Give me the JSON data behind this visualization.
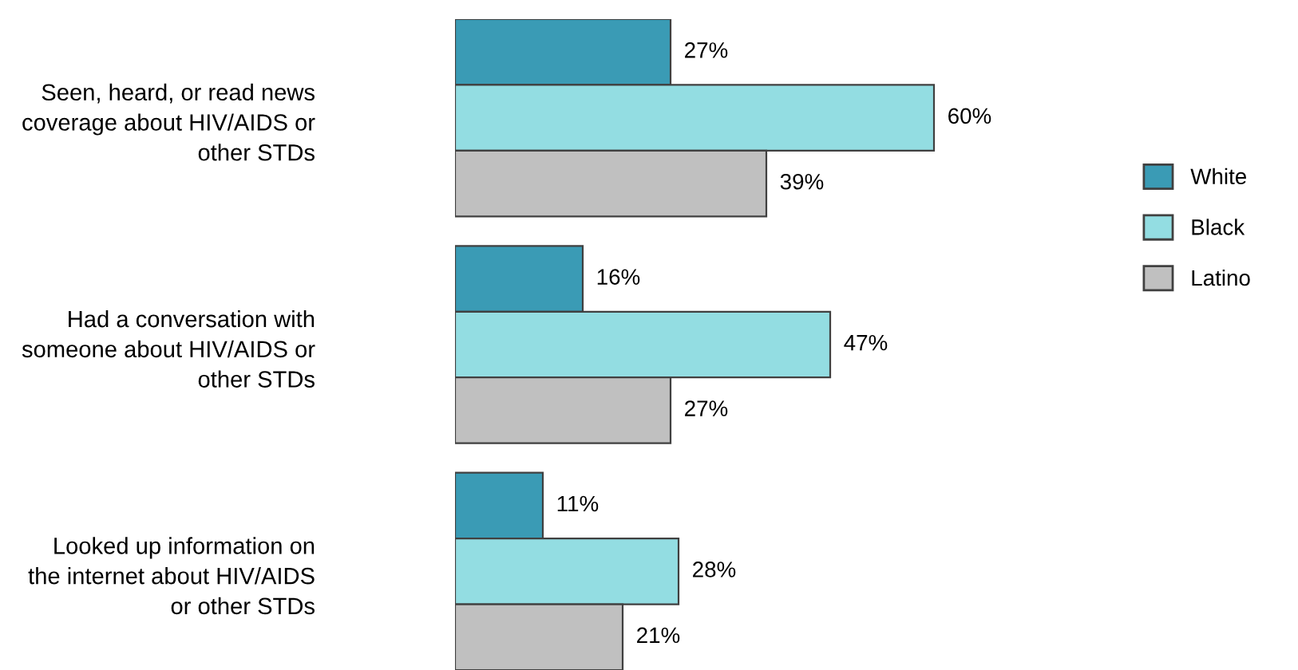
{
  "chart_data": {
    "type": "bar",
    "orientation": "horizontal",
    "categories": [
      "Seen, heard, or read news\ncoverage about HIV/AIDS or\nother STDs",
      "Had a conversation with\nsomeone about HIV/AIDS or\nother STDs",
      "Looked up information on\nthe internet about HIV/AIDS\nor other STDs"
    ],
    "series": [
      {
        "name": "White",
        "color": "#3a9bb5",
        "values": [
          27,
          16,
          11
        ],
        "value_labels": [
          "27%",
          "16%",
          "11%"
        ]
      },
      {
        "name": "Black",
        "color": "#93dde2",
        "values": [
          60,
          47,
          28
        ],
        "value_labels": [
          "60%",
          "47%",
          "28%"
        ]
      },
      {
        "name": "Latino",
        "color": "#c0c0c0",
        "values": [
          39,
          27,
          21
        ],
        "value_labels": [
          "39%",
          "27%",
          "21%"
        ]
      }
    ],
    "legend": "right",
    "grid": false
  }
}
